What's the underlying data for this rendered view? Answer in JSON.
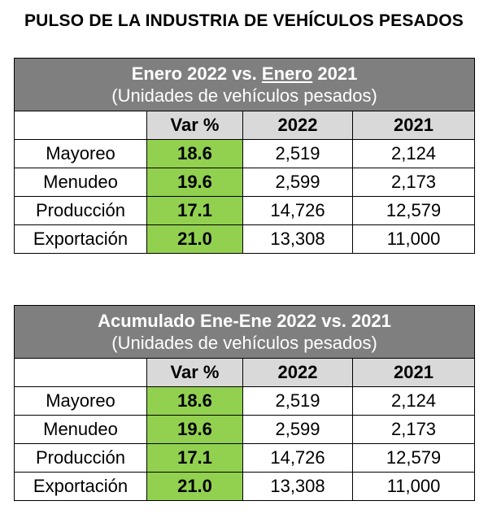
{
  "title": "PULSO DE LA INDUSTRIA DE VEHÍCULOS PESADOS",
  "tables": [
    {
      "heading_pre": "Enero 2022 vs. ",
      "heading_underlined": "Enero",
      "heading_post": " 2021",
      "subheading": "(Unidades de vehículos pesados)",
      "columns": [
        "",
        "Var %",
        "2022",
        "2021"
      ],
      "rows": [
        {
          "label": "Mayoreo",
          "var": "18.6",
          "y2022": "2,519",
          "y2021": "2,124"
        },
        {
          "label": "Menudeo",
          "var": "19.6",
          "y2022": "2,599",
          "y2021": "2,173"
        },
        {
          "label": "Producción",
          "var": "17.1",
          "y2022": "14,726",
          "y2021": "12,579"
        },
        {
          "label": "Exportación",
          "var": "21.0",
          "y2022": "13,308",
          "y2021": "11,000"
        }
      ]
    },
    {
      "heading": "Acumulado Ene-Ene 2022 vs. 2021",
      "subheading": "(Unidades de vehículos pesados)",
      "columns": [
        "",
        "Var %",
        "2022",
        "2021"
      ],
      "rows": [
        {
          "label": "Mayoreo",
          "var": "18.6",
          "y2022": "2,519",
          "y2021": "2,124"
        },
        {
          "label": "Menudeo",
          "var": "19.6",
          "y2022": "2,599",
          "y2021": "2,173"
        },
        {
          "label": "Producción",
          "var": "17.1",
          "y2022": "14,726",
          "y2021": "12,579"
        },
        {
          "label": "Exportación",
          "var": "21.0",
          "y2022": "13,308",
          "y2021": "11,000"
        }
      ]
    }
  ],
  "colors": {
    "header_bg": "#7f7f7f",
    "colhead_bg": "#d9d9d9",
    "var_bg": "#92d050"
  }
}
